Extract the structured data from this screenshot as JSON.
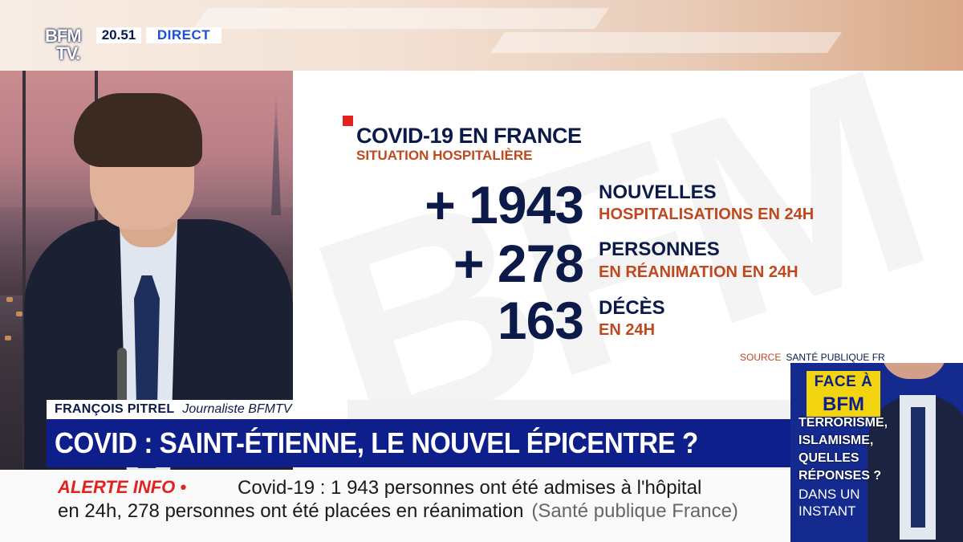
{
  "channel": {
    "logo_line1": "BFM",
    "logo_line2": "TV.",
    "time": "20.51",
    "live_label": "DIRECT"
  },
  "infographic": {
    "title": "COVID-19 EN FRANCE",
    "subtitle": "SITUATION HOSPITALIÈRE",
    "watermark": "BFM",
    "stats": [
      {
        "value": "+ 1943",
        "line1": "NOUVELLES",
        "line2": "HOSPITALISATIONS EN 24H"
      },
      {
        "value": "+ 278",
        "line1": "PERSONNES",
        "line2": "EN RÉANIMATION EN 24H"
      },
      {
        "value": "163",
        "line1": "DÉCÈS",
        "line2": "EN 24H"
      }
    ],
    "source_label": "SOURCE",
    "source_value": "SANTÉ PUBLIQUE FR"
  },
  "lower_third": {
    "name": "FRANÇOIS PITREL",
    "role": "Journaliste BFMTV",
    "headline": "COVID : SAINT-ÉTIENNE, LE NOUVEL ÉPICENTRE ?"
  },
  "ticker": {
    "alert_label": "ALERTE INFO •",
    "line1": "Covid-19 : 1 943 personnes ont été admises à l'hôpital",
    "line2": "en 24h, 278 personnes ont été placées en réanimation",
    "source": "(Santé publique France)"
  },
  "teaser": {
    "show_line1": "FACE À",
    "show_line2": "BFM",
    "topics": [
      "TERRORISME,",
      "ISLAMISME,",
      "QUELLES",
      "RÉPONSES ?"
    ],
    "when_line1": "DANS UN",
    "when_line2": "INSTANT"
  },
  "colors": {
    "navy": "#0c1a4a",
    "headline_blue": "#0e1f8c",
    "accent_orange": "#c0481f",
    "alert_red": "#e3211e",
    "teaser_yellow": "#f2d50f"
  }
}
